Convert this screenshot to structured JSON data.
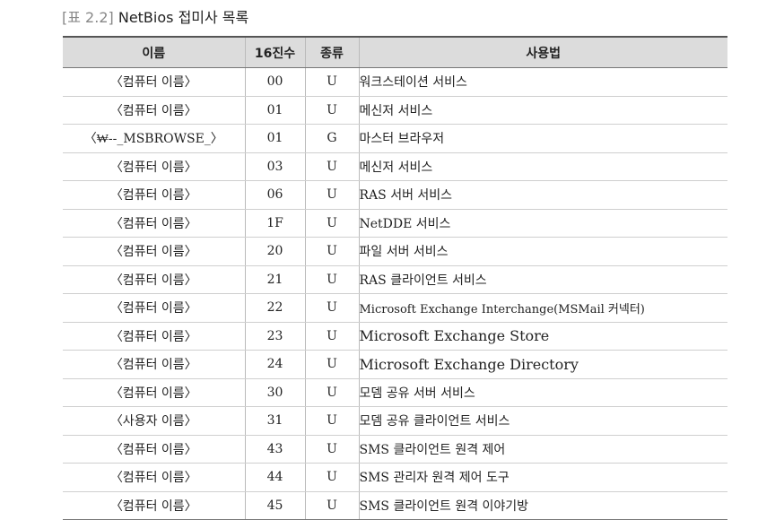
{
  "caption": {
    "tag": "[표 2.2]",
    "title": "NetBios 접미사 목록"
  },
  "table": {
    "headers": [
      "이름",
      "16진수",
      "종류",
      "사용법"
    ],
    "rows": [
      {
        "name": "〈컴퓨터 이름〉",
        "hex": "00",
        "type": "U",
        "usage": "워크스테이션 서비스"
      },
      {
        "name": "〈컴퓨터 이름〉",
        "hex": "01",
        "type": "U",
        "usage": "메신저 서비스"
      },
      {
        "name": "〈₩--_MSBROWSE_〉",
        "hex": "01",
        "type": "G",
        "usage": "마스터 브라우저"
      },
      {
        "name": "〈컴퓨터 이름〉",
        "hex": "03",
        "type": "U",
        "usage": "메신저 서비스"
      },
      {
        "name": "〈컴퓨터 이름〉",
        "hex": "06",
        "type": "U",
        "usage": "RAS 서버 서비스"
      },
      {
        "name": "〈컴퓨터 이름〉",
        "hex": "1F",
        "type": "U",
        "usage": "NetDDE 서비스"
      },
      {
        "name": "〈컴퓨터 이름〉",
        "hex": "20",
        "type": "U",
        "usage": "파일 서버 서비스"
      },
      {
        "name": "〈컴퓨터 이름〉",
        "hex": "21",
        "type": "U",
        "usage": "RAS 클라이언트 서비스"
      },
      {
        "name": "〈컴퓨터 이름〉",
        "hex": "22",
        "type": "U",
        "usage": "Microsoft Exchange Interchange(MSMail 커넥터)"
      },
      {
        "name": "〈컴퓨터 이름〉",
        "hex": "23",
        "type": "U",
        "usage": "Microsoft Exchange Store"
      },
      {
        "name": "〈컴퓨터 이름〉",
        "hex": "24",
        "type": "U",
        "usage": "Microsoft Exchange Directory"
      },
      {
        "name": "〈컴퓨터 이름〉",
        "hex": "30",
        "type": "U",
        "usage": "모뎀 공유 서버 서비스"
      },
      {
        "name": "〈사용자 이름〉",
        "hex": "31",
        "type": "U",
        "usage": "모뎀 공유 클라이언트 서비스"
      },
      {
        "name": "〈컴퓨터 이름〉",
        "hex": "43",
        "type": "U",
        "usage": "SMS 클라이언트 원격 제어"
      },
      {
        "name": "〈컴퓨터 이름〉",
        "hex": "44",
        "type": "U",
        "usage": "SMS 관리자 원격 제어 도구"
      },
      {
        "name": "〈컴퓨터 이름〉",
        "hex": "45",
        "type": "U",
        "usage": "SMS 클라이언트 원격 이야기방"
      }
    ]
  }
}
